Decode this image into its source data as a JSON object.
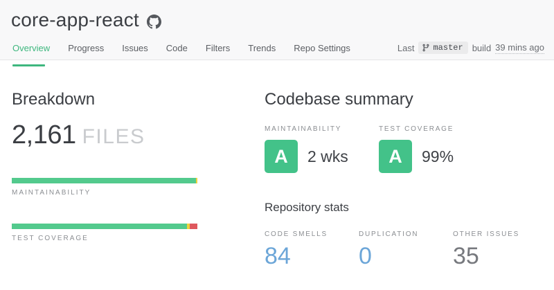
{
  "colors": {
    "header_bg": "#f8f8f9",
    "border": "#e4e4e6",
    "green": "#3eb77e",
    "green_badge": "#43c289",
    "bar_green": "#53ca8d",
    "bar_yellow": "#edd33e",
    "bar_red": "#df585e",
    "stat_blue": "#6ca6d8",
    "stat_gray": "#77797e",
    "label_gray": "#8b8e92",
    "tab_gray": "#5b5e63"
  },
  "header": {
    "repo_name": "core-app-react",
    "github_icon": "github-icon",
    "tabs": [
      {
        "label": "Overview",
        "active": true
      },
      {
        "label": "Progress",
        "active": false
      },
      {
        "label": "Issues",
        "active": false
      },
      {
        "label": "Code",
        "active": false
      },
      {
        "label": "Filters",
        "active": false
      },
      {
        "label": "Trends",
        "active": false
      },
      {
        "label": "Repo Settings",
        "active": false
      }
    ],
    "build_info": {
      "prefix": "Last",
      "branch_icon": "git-branch-icon",
      "branch": "master",
      "middle": "build",
      "time": "39 mins ago"
    }
  },
  "breakdown": {
    "title": "Breakdown",
    "files_count": "2,161",
    "files_label": "FILES",
    "bars": [
      {
        "label": "MAINTAINABILITY",
        "segments": [
          {
            "name": "good",
            "color": "#53ca8d",
            "pct": 99.25
          },
          {
            "name": "warning",
            "color": "#edd33e",
            "pct": 0.75
          }
        ]
      },
      {
        "label": "TEST COVERAGE",
        "segments": [
          {
            "name": "good",
            "color": "#53ca8d",
            "pct": 94.4
          },
          {
            "name": "warning",
            "color": "#edd33e",
            "pct": 1.5
          },
          {
            "name": "poor",
            "color": "#df585e",
            "pct": 4.1
          }
        ]
      }
    ]
  },
  "summary": {
    "title": "Codebase summary",
    "metrics": [
      {
        "label": "MAINTAINABILITY",
        "grade": "A",
        "value": "2 wks"
      },
      {
        "label": "TEST COVERAGE",
        "grade": "A",
        "value": "99%"
      }
    ],
    "stats_title": "Repository stats",
    "stats": [
      {
        "label": "CODE SMELLS",
        "value": "84",
        "color": "#6ca6d8"
      },
      {
        "label": "DUPLICATION",
        "value": "0",
        "color": "#6ca6d8"
      },
      {
        "label": "OTHER ISSUES",
        "value": "35",
        "color": "#77797e"
      }
    ]
  }
}
